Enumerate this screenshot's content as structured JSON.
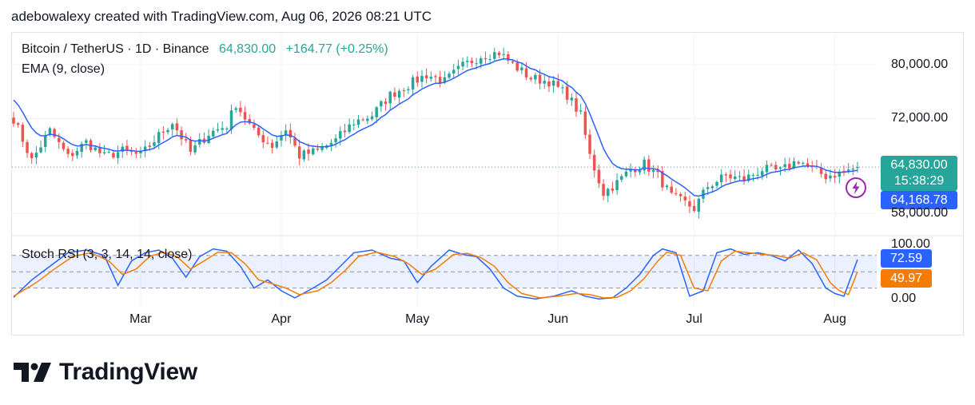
{
  "caption": "adebowalexy created with TradingView.com, Aug 06, 2026 08:21 UTC",
  "legend": {
    "symbol": "Bitcoin / TetherUS · 1D · Binance",
    "last": "64,830.00",
    "change": "+164.77 (+0.25%)",
    "ema_label": "EMA (9, close)",
    "stoch_label": "Stoch RSI (3, 3, 14, 14, close)"
  },
  "price_tags": {
    "last_price": "64,830.00",
    "countdown": "15:38:29",
    "ema_value": "64,168.78",
    "stoch_k": "72.59",
    "stoch_d": "49.97"
  },
  "colors": {
    "up": "#26a69a",
    "down": "#ef5350",
    "ema": "#2962ff",
    "stoch_k": "#2962ff",
    "stoch_d": "#f57c00",
    "last_tag": "#26a69a",
    "ema_tag": "#2962ff",
    "d_tag": "#f57c00"
  },
  "brand": "TradingView",
  "icons": {
    "logo": "tradingview-logo-icon",
    "flash": "lightning-icon"
  },
  "chart_data": [
    {
      "type": "candlestick",
      "title": "Bitcoin / TetherUS · 1D · Binance",
      "y_ticks": [
        "80,000.00",
        "72,000.00",
        "58,000.00"
      ],
      "y_tick_values": [
        80000,
        72000,
        58000
      ],
      "x_ticks": [
        "Mar",
        "Apr",
        "May",
        "Jun",
        "Jul",
        "Aug"
      ],
      "x_tick_dates": [
        "2026-03-01",
        "2026-04-01",
        "2026-05-01",
        "2026-06-01",
        "2026-07-01",
        "2026-08-01"
      ],
      "date_range": [
        "2026-02-01",
        "2026-08-06"
      ],
      "ylim": [
        55500,
        84000
      ],
      "close_anchors": [
        [
          "2026-02-01",
          72000
        ],
        [
          "2026-02-05",
          65800
        ],
        [
          "2026-02-09",
          70200
        ],
        [
          "2026-02-13",
          66300
        ],
        [
          "2026-02-17",
          68500
        ],
        [
          "2026-02-21",
          66400
        ],
        [
          "2026-02-25",
          67200
        ],
        [
          "2026-03-01",
          66500
        ],
        [
          "2026-03-05",
          69500
        ],
        [
          "2026-03-08",
          71500
        ],
        [
          "2026-03-12",
          67000
        ],
        [
          "2026-03-16",
          69800
        ],
        [
          "2026-03-20",
          71000
        ],
        [
          "2026-03-22",
          74200
        ],
        [
          "2026-03-26",
          70000
        ],
        [
          "2026-03-30",
          68000
        ],
        [
          "2026-04-02",
          70500
        ],
        [
          "2026-04-05",
          66500
        ],
        [
          "2026-04-09",
          67200
        ],
        [
          "2026-04-13",
          68800
        ],
        [
          "2026-04-17",
          71500
        ],
        [
          "2026-04-21",
          72500
        ],
        [
          "2026-04-25",
          75500
        ],
        [
          "2026-04-29",
          77000
        ],
        [
          "2026-05-03",
          78500
        ],
        [
          "2026-05-07",
          77500
        ],
        [
          "2026-05-11",
          79800
        ],
        [
          "2026-05-15",
          81300
        ],
        [
          "2026-05-19",
          81800
        ],
        [
          "2026-05-22",
          80000
        ],
        [
          "2026-05-26",
          78000
        ],
        [
          "2026-05-30",
          77500
        ],
        [
          "2026-06-03",
          75500
        ],
        [
          "2026-06-06",
          72500
        ],
        [
          "2026-06-08",
          66500
        ],
        [
          "2026-06-11",
          61000
        ],
        [
          "2026-06-14",
          62500
        ],
        [
          "2026-06-17",
          64500
        ],
        [
          "2026-06-20",
          65300
        ],
        [
          "2026-06-23",
          63500
        ],
        [
          "2026-06-26",
          60500
        ],
        [
          "2026-06-29",
          59500
        ],
        [
          "2026-07-01",
          58700
        ],
        [
          "2026-07-04",
          62000
        ],
        [
          "2026-07-08",
          63500
        ],
        [
          "2026-07-12",
          63000
        ],
        [
          "2026-07-16",
          64500
        ],
        [
          "2026-07-20",
          64200
        ],
        [
          "2026-07-24",
          65900
        ],
        [
          "2026-07-27",
          64500
        ],
        [
          "2026-07-30",
          63500
        ],
        [
          "2026-08-02",
          63900
        ],
        [
          "2026-08-06",
          64830
        ]
      ]
    },
    {
      "type": "line",
      "title": "Stoch RSI (3, 3, 14, 14, close)",
      "y_ticks": [
        "100.00",
        "0.00"
      ],
      "ylim": [
        -7,
        115
      ],
      "bands": [
        20,
        50,
        80
      ],
      "date_range": [
        "2026-02-01",
        "2026-08-06"
      ],
      "series": [
        {
          "name": "K",
          "points": [
            [
              "2026-02-01",
              3
            ],
            [
              "2026-02-05",
              35
            ],
            [
              "2026-02-09",
              60
            ],
            [
              "2026-02-13",
              85
            ],
            [
              "2026-02-17",
              90
            ],
            [
              "2026-02-21",
              80
            ],
            [
              "2026-02-24",
              25
            ],
            [
              "2026-02-27",
              70
            ],
            [
              "2026-03-02",
              85
            ],
            [
              "2026-03-05",
              90
            ],
            [
              "2026-03-08",
              75
            ],
            [
              "2026-03-11",
              40
            ],
            [
              "2026-03-14",
              78
            ],
            [
              "2026-03-17",
              92
            ],
            [
              "2026-03-20",
              88
            ],
            [
              "2026-03-23",
              60
            ],
            [
              "2026-03-26",
              20
            ],
            [
              "2026-03-29",
              35
            ],
            [
              "2026-04-01",
              15
            ],
            [
              "2026-04-04",
              2
            ],
            [
              "2026-04-08",
              20
            ],
            [
              "2026-04-11",
              35
            ],
            [
              "2026-04-14",
              60
            ],
            [
              "2026-04-17",
              85
            ],
            [
              "2026-04-21",
              90
            ],
            [
              "2026-04-25",
              75
            ],
            [
              "2026-04-28",
              70
            ],
            [
              "2026-05-01",
              30
            ],
            [
              "2026-05-04",
              60
            ],
            [
              "2026-05-08",
              90
            ],
            [
              "2026-05-11",
              82
            ],
            [
              "2026-05-14",
              78
            ],
            [
              "2026-05-17",
              55
            ],
            [
              "2026-05-20",
              20
            ],
            [
              "2026-05-23",
              5
            ],
            [
              "2026-05-27",
              0
            ],
            [
              "2026-05-31",
              5
            ],
            [
              "2026-06-04",
              15
            ],
            [
              "2026-06-07",
              5
            ],
            [
              "2026-06-10",
              0
            ],
            [
              "2026-06-13",
              2
            ],
            [
              "2026-06-16",
              20
            ],
            [
              "2026-06-19",
              45
            ],
            [
              "2026-06-22",
              80
            ],
            [
              "2026-06-24",
              92
            ],
            [
              "2026-06-27",
              85
            ],
            [
              "2026-06-30",
              5
            ],
            [
              "2026-07-03",
              15
            ],
            [
              "2026-07-06",
              85
            ],
            [
              "2026-07-09",
              92
            ],
            [
              "2026-07-12",
              82
            ],
            [
              "2026-07-15",
              85
            ],
            [
              "2026-07-18",
              80
            ],
            [
              "2026-07-21",
              70
            ],
            [
              "2026-07-24",
              90
            ],
            [
              "2026-07-27",
              65
            ],
            [
              "2026-07-30",
              20
            ],
            [
              "2026-08-01",
              10
            ],
            [
              "2026-08-03",
              5
            ],
            [
              "2026-08-06",
              72.59
            ]
          ]
        },
        {
          "name": "D",
          "points": [
            [
              "2026-02-01",
              5
            ],
            [
              "2026-02-06",
              30
            ],
            [
              "2026-02-10",
              55
            ],
            [
              "2026-02-14",
              78
            ],
            [
              "2026-02-18",
              85
            ],
            [
              "2026-02-22",
              70
            ],
            [
              "2026-02-25",
              45
            ],
            [
              "2026-02-28",
              55
            ],
            [
              "2026-03-03",
              78
            ],
            [
              "2026-03-06",
              86
            ],
            [
              "2026-03-09",
              78
            ],
            [
              "2026-03-12",
              55
            ],
            [
              "2026-03-15",
              70
            ],
            [
              "2026-03-18",
              86
            ],
            [
              "2026-03-21",
              85
            ],
            [
              "2026-03-24",
              65
            ],
            [
              "2026-03-27",
              35
            ],
            [
              "2026-03-30",
              28
            ],
            [
              "2026-04-02",
              20
            ],
            [
              "2026-04-05",
              8
            ],
            [
              "2026-04-09",
              15
            ],
            [
              "2026-04-12",
              30
            ],
            [
              "2026-04-15",
              52
            ],
            [
              "2026-04-18",
              78
            ],
            [
              "2026-04-22",
              86
            ],
            [
              "2026-04-26",
              78
            ],
            [
              "2026-04-29",
              65
            ],
            [
              "2026-05-02",
              45
            ],
            [
              "2026-05-05",
              55
            ],
            [
              "2026-05-09",
              82
            ],
            [
              "2026-05-12",
              84
            ],
            [
              "2026-05-15",
              76
            ],
            [
              "2026-05-18",
              60
            ],
            [
              "2026-05-21",
              30
            ],
            [
              "2026-05-24",
              10
            ],
            [
              "2026-05-28",
              2
            ],
            [
              "2026-06-01",
              5
            ],
            [
              "2026-06-05",
              10
            ],
            [
              "2026-06-08",
              8
            ],
            [
              "2026-06-11",
              2
            ],
            [
              "2026-06-14",
              3
            ],
            [
              "2026-06-17",
              15
            ],
            [
              "2026-06-20",
              38
            ],
            [
              "2026-06-23",
              70
            ],
            [
              "2026-06-25",
              86
            ],
            [
              "2026-06-28",
              80
            ],
            [
              "2026-07-01",
              20
            ],
            [
              "2026-07-04",
              15
            ],
            [
              "2026-07-07",
              70
            ],
            [
              "2026-07-10",
              88
            ],
            [
              "2026-07-13",
              85
            ],
            [
              "2026-07-16",
              82
            ],
            [
              "2026-07-19",
              80
            ],
            [
              "2026-07-22",
              75
            ],
            [
              "2026-07-25",
              85
            ],
            [
              "2026-07-28",
              72
            ],
            [
              "2026-07-31",
              30
            ],
            [
              "2026-08-02",
              15
            ],
            [
              "2026-08-04",
              8
            ],
            [
              "2026-08-06",
              49.97
            ]
          ]
        }
      ]
    }
  ]
}
